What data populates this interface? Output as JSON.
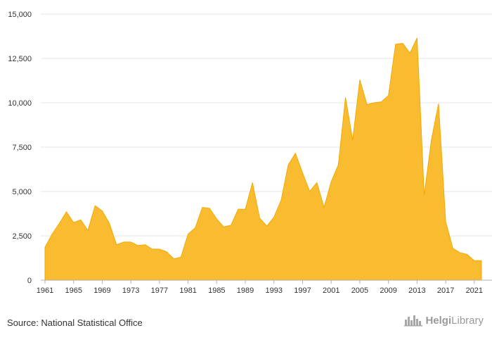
{
  "chart_data": {
    "type": "area",
    "title": "",
    "xlabel": "",
    "ylabel": "",
    "x": [
      1961,
      1962,
      1963,
      1964,
      1965,
      1966,
      1967,
      1968,
      1969,
      1970,
      1971,
      1972,
      1973,
      1974,
      1975,
      1976,
      1977,
      1978,
      1979,
      1980,
      1981,
      1982,
      1983,
      1984,
      1985,
      1986,
      1987,
      1988,
      1989,
      1990,
      1991,
      1992,
      1993,
      1994,
      1995,
      1996,
      1997,
      1998,
      1999,
      2000,
      2001,
      2002,
      2003,
      2004,
      2005,
      2006,
      2007,
      2008,
      2009,
      2010,
      2011,
      2012,
      2013,
      2014,
      2015,
      2016,
      2017,
      2018,
      2019,
      2020,
      2021,
      2022
    ],
    "values": [
      1850,
      2600,
      3200,
      3850,
      3250,
      3400,
      2800,
      4200,
      3900,
      3200,
      2000,
      2150,
      2150,
      1950,
      2000,
      1750,
      1750,
      1600,
      1200,
      1300,
      2600,
      2950,
      4100,
      4050,
      3450,
      3000,
      3100,
      4000,
      4000,
      5500,
      3500,
      3050,
      3550,
      4500,
      6500,
      7150,
      6050,
      5000,
      5500,
      4100,
      5550,
      6500,
      10300,
      7900,
      11300,
      9900,
      10000,
      10050,
      10400,
      13300,
      13350,
      12800,
      13650,
      4800,
      7900,
      9950,
      3300,
      1800,
      1550,
      1450,
      1100,
      1100
    ],
    "ylim": [
      0,
      15000
    ],
    "yticks": [
      0,
      2500,
      5000,
      7500,
      10000,
      12500,
      15000
    ],
    "ytick_labels": [
      "0",
      "2,500",
      "5,000",
      "7,500",
      "10,000",
      "12,500",
      "15,000"
    ],
    "xticks": [
      1961,
      1965,
      1969,
      1973,
      1977,
      1981,
      1985,
      1989,
      1993,
      1997,
      2001,
      2005,
      2009,
      2013,
      2017,
      2021
    ],
    "grid": true,
    "color": "#F9BB2F",
    "line_color": "#F2A900"
  },
  "footer": {
    "source": "Source: National Statistical Office",
    "logo_bold": "Helgi",
    "logo_regular": "Library",
    "logo_icon": "city-skyline-icon"
  }
}
